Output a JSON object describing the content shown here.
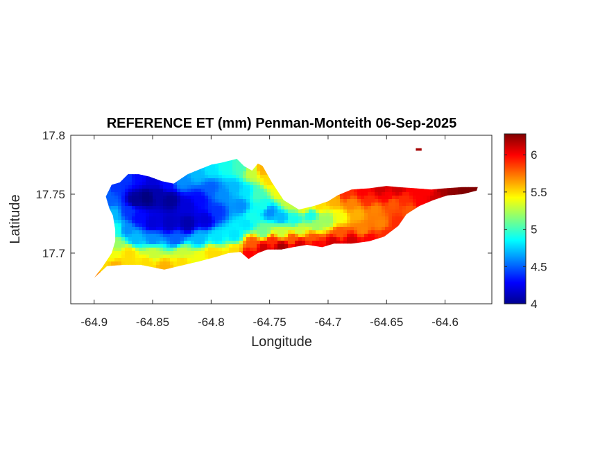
{
  "chart_data": {
    "type": "heatmap",
    "title": "REFERENCE ET (mm) Penman-Monteith 06-Sep-2025",
    "xlabel": "Longitude",
    "ylabel": "Latitude",
    "xlim": [
      -64.92,
      -64.56
    ],
    "ylim": [
      17.657,
      17.8
    ],
    "xticks": [
      -64.9,
      -64.85,
      -64.8,
      -64.75,
      -64.7,
      -64.65,
      -64.6
    ],
    "xtick_labels": [
      "-64.9",
      "-64.85",
      "-64.8",
      "-64.75",
      "-64.7",
      "-64.65",
      "-64.6"
    ],
    "yticks": [
      17.7,
      17.75,
      17.8
    ],
    "ytick_labels": [
      "17.7",
      "17.75",
      "17.8"
    ],
    "colorbar": {
      "colormap": "jet",
      "clim": [
        4,
        6.28
      ],
      "ticks": [
        4,
        4.5,
        5,
        5.5,
        6
      ],
      "tick_labels": [
        "4",
        "4.5",
        "5",
        "5.5",
        "6"
      ],
      "location": "right"
    },
    "grid": false,
    "island_outline": [
      [
        -64.9,
        17.679
      ],
      [
        -64.889,
        17.689
      ],
      [
        -64.875,
        17.69
      ],
      [
        -64.86,
        17.69
      ],
      [
        -64.84,
        17.686
      ],
      [
        -64.823,
        17.69
      ],
      [
        -64.81,
        17.693
      ],
      [
        -64.795,
        17.697
      ],
      [
        -64.785,
        17.7
      ],
      [
        -64.775,
        17.701
      ],
      [
        -64.768,
        17.695
      ],
      [
        -64.76,
        17.7
      ],
      [
        -64.752,
        17.703
      ],
      [
        -64.74,
        17.703
      ],
      [
        -64.73,
        17.705
      ],
      [
        -64.718,
        17.707
      ],
      [
        -64.705,
        17.705
      ],
      [
        -64.695,
        17.708
      ],
      [
        -64.68,
        17.708
      ],
      [
        -64.665,
        17.71
      ],
      [
        -64.652,
        17.714
      ],
      [
        -64.64,
        17.723
      ],
      [
        -64.633,
        17.733
      ],
      [
        -64.622,
        17.74
      ],
      [
        -64.61,
        17.745
      ],
      [
        -64.598,
        17.749
      ],
      [
        -64.585,
        17.75
      ],
      [
        -64.573,
        17.753
      ],
      [
        -64.572,
        17.756
      ],
      [
        -64.585,
        17.756
      ],
      [
        -64.6,
        17.755
      ],
      [
        -64.612,
        17.754
      ],
      [
        -64.625,
        17.755
      ],
      [
        -64.64,
        17.756
      ],
      [
        -64.65,
        17.757
      ],
      [
        -64.665,
        17.755
      ],
      [
        -64.68,
        17.754
      ],
      [
        -64.692,
        17.749
      ],
      [
        -64.7,
        17.744
      ],
      [
        -64.712,
        17.74
      ],
      [
        -64.725,
        17.737
      ],
      [
        -64.738,
        17.745
      ],
      [
        -64.748,
        17.76
      ],
      [
        -64.756,
        17.774
      ],
      [
        -64.76,
        17.776
      ],
      [
        -64.765,
        17.77
      ],
      [
        -64.772,
        17.774
      ],
      [
        -64.778,
        17.78
      ],
      [
        -64.79,
        17.777
      ],
      [
        -64.8,
        17.775
      ],
      [
        -64.81,
        17.771
      ],
      [
        -64.82,
        17.767
      ],
      [
        -64.832,
        17.759
      ],
      [
        -64.842,
        17.761
      ],
      [
        -64.853,
        17.765
      ],
      [
        -64.862,
        17.767
      ],
      [
        -64.871,
        17.767
      ],
      [
        -64.878,
        17.76
      ],
      [
        -64.885,
        17.758
      ],
      [
        -64.89,
        17.748
      ],
      [
        -64.887,
        17.738
      ],
      [
        -64.884,
        17.732
      ],
      [
        -64.882,
        17.72
      ],
      [
        -64.882,
        17.71
      ],
      [
        -64.885,
        17.7
      ],
      [
        -64.893,
        17.688
      ]
    ],
    "islet_outline": [
      [
        -64.625,
        17.787
      ],
      [
        -64.62,
        17.787
      ],
      [
        -64.62,
        17.789
      ],
      [
        -64.625,
        17.789
      ]
    ],
    "sample_points": [
      [
        -64.9,
        17.681,
        5.7
      ],
      [
        -64.893,
        17.69,
        5.5
      ],
      [
        -64.882,
        17.69,
        5.6
      ],
      [
        -64.87,
        17.691,
        5.5
      ],
      [
        -64.855,
        17.692,
        5.5
      ],
      [
        -64.84,
        17.688,
        5.6
      ],
      [
        -64.825,
        17.693,
        5.5
      ],
      [
        -64.81,
        17.696,
        5.4
      ],
      [
        -64.795,
        17.699,
        5.5
      ],
      [
        -64.78,
        17.702,
        5.5
      ],
      [
        -64.768,
        17.699,
        6.0
      ],
      [
        -64.755,
        17.704,
        6.1
      ],
      [
        -64.74,
        17.705,
        6.2
      ],
      [
        -64.725,
        17.707,
        6.1
      ],
      [
        -64.71,
        17.708,
        6.0
      ],
      [
        -64.695,
        17.709,
        6.1
      ],
      [
        -64.68,
        17.71,
        6.1
      ],
      [
        -64.665,
        17.712,
        6.0
      ],
      [
        -64.65,
        17.716,
        5.9
      ],
      [
        -64.64,
        17.725,
        5.9
      ],
      [
        -64.63,
        17.736,
        5.8
      ],
      [
        -64.62,
        17.742,
        6.0
      ],
      [
        -64.608,
        17.747,
        6.1
      ],
      [
        -64.595,
        17.751,
        6.25
      ],
      [
        -64.583,
        17.753,
        6.28
      ],
      [
        -64.575,
        17.755,
        6.28
      ],
      [
        -64.6,
        17.753,
        6.2
      ],
      [
        -64.615,
        17.752,
        6.0
      ],
      [
        -64.625,
        17.753,
        6.0
      ],
      [
        -64.64,
        17.754,
        6.1
      ],
      [
        -64.655,
        17.754,
        6.1
      ],
      [
        -64.67,
        17.752,
        6.0
      ],
      [
        -64.685,
        17.75,
        5.9
      ],
      [
        -64.695,
        17.745,
        5.6
      ],
      [
        -64.708,
        17.741,
        5.5
      ],
      [
        -64.72,
        17.739,
        5.4
      ],
      [
        -64.733,
        17.743,
        5.3
      ],
      [
        -64.742,
        17.752,
        5.4
      ],
      [
        -64.75,
        17.762,
        5.5
      ],
      [
        -64.756,
        17.771,
        5.6
      ],
      [
        -64.765,
        17.768,
        5.3
      ],
      [
        -64.775,
        17.773,
        5.0
      ],
      [
        -64.788,
        17.773,
        4.9
      ],
      [
        -64.8,
        17.771,
        4.8
      ],
      [
        -64.812,
        17.767,
        4.7
      ],
      [
        -64.825,
        17.761,
        4.6
      ],
      [
        -64.838,
        17.759,
        4.3
      ],
      [
        -64.85,
        17.763,
        4.2
      ],
      [
        -64.862,
        17.765,
        4.3
      ],
      [
        -64.872,
        17.764,
        4.4
      ],
      [
        -64.882,
        17.756,
        4.4
      ],
      [
        -64.887,
        17.745,
        4.5
      ],
      [
        -64.884,
        17.733,
        4.7
      ],
      [
        -64.881,
        17.72,
        4.9
      ],
      [
        -64.881,
        17.708,
        5.2
      ],
      [
        -64.884,
        17.698,
        5.4
      ],
      [
        -64.865,
        17.745,
        4.05
      ],
      [
        -64.855,
        17.747,
        4.0
      ],
      [
        -64.845,
        17.75,
        4.1
      ],
      [
        -64.835,
        17.745,
        4.05
      ],
      [
        -64.82,
        17.74,
        4.2
      ],
      [
        -64.81,
        17.745,
        4.3
      ],
      [
        -64.8,
        17.755,
        4.5
      ],
      [
        -64.795,
        17.735,
        4.4
      ],
      [
        -64.805,
        17.728,
        4.2
      ],
      [
        -64.82,
        17.725,
        4.1
      ],
      [
        -64.835,
        17.725,
        4.15
      ],
      [
        -64.85,
        17.725,
        4.2
      ],
      [
        -64.862,
        17.73,
        4.3
      ],
      [
        -64.87,
        17.735,
        4.4
      ],
      [
        -64.872,
        17.72,
        4.6
      ],
      [
        -64.865,
        17.712,
        4.7
      ],
      [
        -64.85,
        17.712,
        4.6
      ],
      [
        -64.83,
        17.712,
        4.5
      ],
      [
        -64.81,
        17.712,
        4.7
      ],
      [
        -64.795,
        17.713,
        4.8
      ],
      [
        -64.78,
        17.715,
        4.8
      ],
      [
        -64.79,
        17.75,
        4.6
      ],
      [
        -64.78,
        17.755,
        4.7
      ],
      [
        -64.77,
        17.752,
        4.8
      ],
      [
        -64.775,
        17.74,
        4.6
      ],
      [
        -64.765,
        17.73,
        4.9
      ],
      [
        -64.77,
        17.725,
        4.8
      ],
      [
        -64.755,
        17.74,
        4.9
      ],
      [
        -64.76,
        17.75,
        5.0
      ],
      [
        -64.75,
        17.735,
        4.6
      ],
      [
        -64.74,
        17.73,
        4.7
      ],
      [
        -64.755,
        17.718,
        5.1
      ],
      [
        -64.74,
        17.718,
        5.3
      ],
      [
        -64.725,
        17.72,
        5.3
      ],
      [
        -64.71,
        17.723,
        5.2
      ],
      [
        -64.7,
        17.728,
        5.2
      ],
      [
        -64.69,
        17.73,
        5.4
      ],
      [
        -64.675,
        17.733,
        5.6
      ],
      [
        -64.66,
        17.737,
        5.7
      ],
      [
        -64.645,
        17.742,
        5.8
      ],
      [
        -64.635,
        17.746,
        5.9
      ],
      [
        -64.68,
        17.742,
        5.7
      ],
      [
        -64.665,
        17.745,
        5.9
      ],
      [
        -64.65,
        17.748,
        6.0
      ],
      [
        -64.715,
        17.732,
        4.9
      ],
      [
        -64.728,
        17.728,
        4.9
      ],
      [
        -64.8,
        17.7,
        5.5
      ],
      [
        -64.825,
        17.7,
        5.3
      ],
      [
        -64.85,
        17.7,
        5.3
      ],
      [
        -64.87,
        17.7,
        5.5
      ],
      [
        -64.875,
        17.77,
        4.3
      ],
      [
        -64.86,
        17.772,
        4.3
      ],
      [
        -64.845,
        17.768,
        4.2
      ],
      [
        -64.89,
        17.75,
        4.5
      ],
      [
        -64.895,
        17.74,
        4.6
      ],
      [
        -64.765,
        17.708,
        5.8
      ],
      [
        -64.748,
        17.71,
        5.9
      ],
      [
        -64.73,
        17.712,
        5.8
      ],
      [
        -64.712,
        17.713,
        5.8
      ],
      [
        -64.69,
        17.717,
        5.8
      ],
      [
        -64.67,
        17.72,
        5.7
      ],
      [
        -64.655,
        17.725,
        5.7
      ],
      [
        -64.623,
        17.788,
        6.2
      ],
      [
        -64.62,
        17.788,
        6.2
      ]
    ]
  }
}
